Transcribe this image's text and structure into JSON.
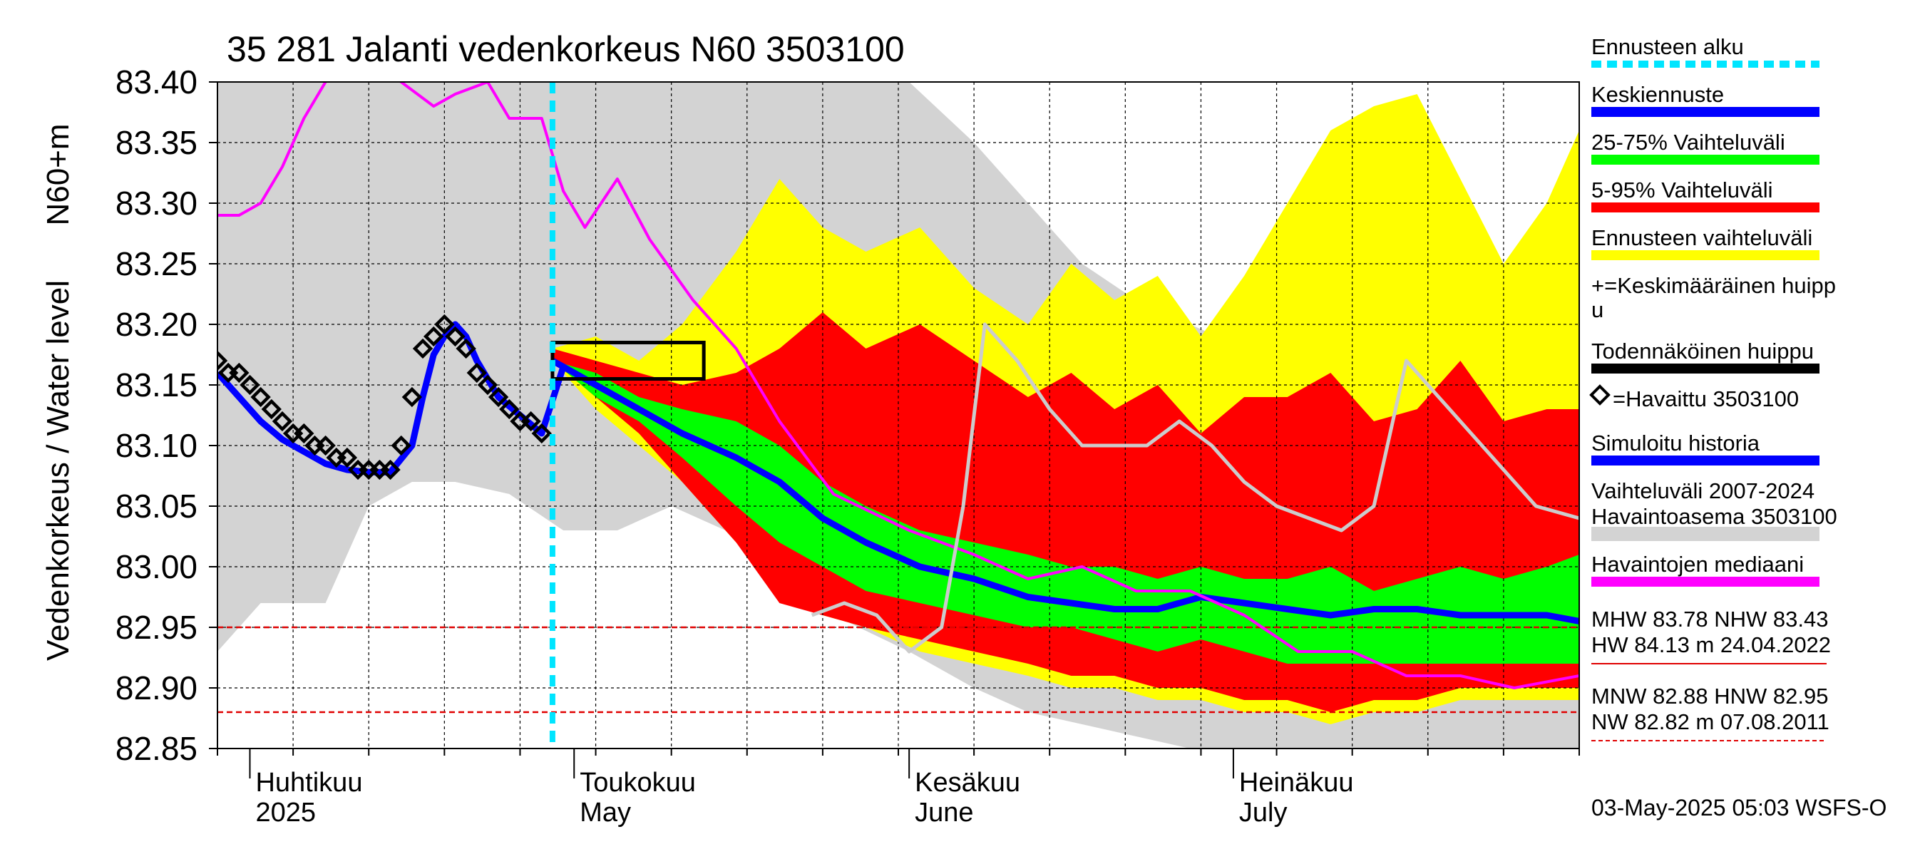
{
  "chart_data": {
    "type": "area",
    "title": "35 281 Jalanti vedenkorkeus N60 3503100",
    "ylabel": "Vedenkorkeus / Water level",
    "ylabel_unit": "N60+m",
    "ylim": [
      82.85,
      83.4
    ],
    "yticks": [
      "83.40",
      "83.35",
      "83.30",
      "83.25",
      "83.20",
      "83.15",
      "83.10",
      "83.05",
      "83.00",
      "82.95",
      "82.90",
      "82.85"
    ],
    "xlim": [
      "2025-03-29",
      "2025-08-02"
    ],
    "grid": true,
    "month_labels": [
      {
        "line1": "Huhtikuu",
        "line2": "2025",
        "date": "2025-04-01"
      },
      {
        "line1": "Toukokuu",
        "line2": "May",
        "date": "2025-05-01"
      },
      {
        "line1": "Kesäkuu",
        "line2": "June",
        "date": "2025-06-01"
      },
      {
        "line1": "Heinäkuu",
        "line2": "July",
        "date": "2025-07-01"
      }
    ],
    "forecast_start": "2025-04-29",
    "probable_peak_box": {
      "x_start": "2025-04-29",
      "x_end": "2025-05-13",
      "y_low": 83.155,
      "y_high": 83.185
    },
    "reference_lines": [
      {
        "name": "HNW",
        "value": 82.95,
        "color": "#e00000"
      },
      {
        "name": "MNW",
        "value": 82.88,
        "color": "#e00000"
      }
    ],
    "series": [
      {
        "name": "Vaihteluväli 2007-2024 Havaintoasema 3503100",
        "kind": "band",
        "color": "#d3d3d3",
        "x": [
          "2025-03-29",
          "2025-04-02",
          "2025-04-08",
          "2025-04-12",
          "2025-04-16",
          "2025-04-20",
          "2025-04-25",
          "2025-04-30",
          "2025-05-05",
          "2025-05-10",
          "2025-05-15",
          "2025-05-20",
          "2025-05-25",
          "2025-06-01",
          "2025-06-07",
          "2025-06-12",
          "2025-06-17",
          "2025-06-22",
          "2025-06-27",
          "2025-07-02",
          "2025-07-07",
          "2025-07-12",
          "2025-07-17",
          "2025-07-22",
          "2025-07-27",
          "2025-08-02"
        ],
        "low": [
          82.93,
          82.97,
          82.97,
          83.05,
          83.07,
          83.07,
          83.06,
          83.03,
          83.03,
          83.05,
          83.03,
          83.0,
          82.96,
          82.93,
          82.9,
          82.88,
          82.87,
          82.86,
          82.85,
          82.85,
          82.85,
          82.85,
          82.85,
          82.85,
          82.85,
          82.85
        ],
        "high": [
          83.4,
          83.4,
          83.4,
          83.4,
          83.4,
          83.4,
          83.4,
          83.4,
          83.4,
          83.4,
          83.4,
          83.4,
          83.4,
          83.4,
          83.35,
          83.3,
          83.25,
          83.22,
          83.2,
          83.18,
          83.17,
          83.16,
          83.18,
          83.15,
          83.13,
          83.12
        ]
      },
      {
        "name": "Ennusteen vaihteluväli",
        "kind": "band",
        "color": "#ffff00",
        "x": [
          "2025-04-29",
          "2025-05-03",
          "2025-05-07",
          "2025-05-11",
          "2025-05-16",
          "2025-05-20",
          "2025-05-24",
          "2025-05-28",
          "2025-06-02",
          "2025-06-07",
          "2025-06-12",
          "2025-06-16",
          "2025-06-20",
          "2025-06-24",
          "2025-06-28",
          "2025-07-02",
          "2025-07-06",
          "2025-07-10",
          "2025-07-14",
          "2025-07-18",
          "2025-07-22",
          "2025-07-26",
          "2025-07-30",
          "2025-08-02"
        ],
        "low": [
          83.17,
          83.13,
          83.1,
          83.07,
          83.02,
          82.98,
          82.96,
          82.95,
          82.93,
          82.92,
          82.91,
          82.9,
          82.9,
          82.89,
          82.89,
          82.88,
          82.88,
          82.87,
          82.88,
          82.88,
          82.89,
          82.89,
          82.89,
          82.89
        ],
        "high": [
          83.18,
          83.19,
          83.17,
          83.2,
          83.26,
          83.32,
          83.28,
          83.26,
          83.28,
          83.23,
          83.2,
          83.25,
          83.22,
          83.24,
          83.19,
          83.24,
          83.3,
          83.36,
          83.38,
          83.39,
          83.32,
          83.25,
          83.3,
          83.36
        ]
      },
      {
        "name": "5-95% Vaihteluväli",
        "kind": "band",
        "color": "#ff0000",
        "x": [
          "2025-04-29",
          "2025-05-03",
          "2025-05-07",
          "2025-05-11",
          "2025-05-16",
          "2025-05-20",
          "2025-05-24",
          "2025-05-28",
          "2025-06-02",
          "2025-06-07",
          "2025-06-12",
          "2025-06-16",
          "2025-06-20",
          "2025-06-24",
          "2025-06-28",
          "2025-07-02",
          "2025-07-06",
          "2025-07-10",
          "2025-07-14",
          "2025-07-18",
          "2025-07-22",
          "2025-07-26",
          "2025-07-30",
          "2025-08-02"
        ],
        "low": [
          83.17,
          83.14,
          83.11,
          83.07,
          83.02,
          82.97,
          82.96,
          82.95,
          82.94,
          82.93,
          82.92,
          82.91,
          82.91,
          82.9,
          82.9,
          82.89,
          82.89,
          82.88,
          82.89,
          82.89,
          82.9,
          82.9,
          82.9,
          82.9
        ],
        "high": [
          83.18,
          83.17,
          83.16,
          83.15,
          83.16,
          83.18,
          83.21,
          83.18,
          83.2,
          83.17,
          83.14,
          83.16,
          83.13,
          83.15,
          83.11,
          83.14,
          83.14,
          83.16,
          83.12,
          83.13,
          83.17,
          83.12,
          83.13,
          83.13
        ]
      },
      {
        "name": "25-75% Vaihteluväli",
        "kind": "band",
        "color": "#00ff00",
        "x": [
          "2025-04-29",
          "2025-05-03",
          "2025-05-07",
          "2025-05-11",
          "2025-05-16",
          "2025-05-20",
          "2025-05-24",
          "2025-05-28",
          "2025-06-02",
          "2025-06-07",
          "2025-06-12",
          "2025-06-16",
          "2025-06-20",
          "2025-06-24",
          "2025-06-28",
          "2025-07-02",
          "2025-07-06",
          "2025-07-10",
          "2025-07-14",
          "2025-07-18",
          "2025-07-22",
          "2025-07-26",
          "2025-07-30",
          "2025-08-02"
        ],
        "low": [
          83.17,
          83.14,
          83.12,
          83.09,
          83.05,
          83.02,
          83.0,
          82.98,
          82.97,
          82.96,
          82.95,
          82.95,
          82.94,
          82.93,
          82.94,
          82.93,
          82.92,
          82.92,
          82.92,
          82.92,
          82.92,
          82.92,
          82.92,
          82.92
        ],
        "high": [
          83.17,
          83.16,
          83.14,
          83.13,
          83.12,
          83.1,
          83.07,
          83.05,
          83.03,
          83.02,
          83.01,
          83.0,
          83.0,
          82.99,
          83.0,
          82.99,
          82.99,
          83.0,
          82.98,
          82.99,
          83.0,
          82.99,
          83.0,
          83.01
        ]
      },
      {
        "name": "Keskiennuste",
        "kind": "line",
        "color": "#0000ff",
        "x": [
          "2025-04-29",
          "2025-05-03",
          "2025-05-07",
          "2025-05-11",
          "2025-05-16",
          "2025-05-20",
          "2025-05-24",
          "2025-05-28",
          "2025-06-02",
          "2025-06-07",
          "2025-06-12",
          "2025-06-16",
          "2025-06-20",
          "2025-06-24",
          "2025-06-28",
          "2025-07-02",
          "2025-07-06",
          "2025-07-10",
          "2025-07-14",
          "2025-07-18",
          "2025-07-22",
          "2025-07-26",
          "2025-07-30",
          "2025-08-02"
        ],
        "y": [
          83.17,
          83.15,
          83.13,
          83.11,
          83.09,
          83.07,
          83.04,
          83.02,
          83.0,
          82.99,
          82.975,
          82.97,
          82.965,
          82.965,
          82.975,
          82.97,
          82.965,
          82.96,
          82.965,
          82.965,
          82.96,
          82.96,
          82.96,
          82.955
        ]
      },
      {
        "name": "Havaintojen mediaani",
        "kind": "line",
        "color": "#ff00ff",
        "x": [
          "2025-03-29",
          "2025-03-31",
          "2025-04-02",
          "2025-04-04",
          "2025-04-06",
          "2025-04-08",
          "2025-04-10",
          "2025-04-12",
          "2025-04-15",
          "2025-04-18",
          "2025-04-20",
          "2025-04-23",
          "2025-04-25",
          "2025-04-28",
          "2025-04-30",
          "2025-05-02",
          "2025-05-05",
          "2025-05-08",
          "2025-05-12",
          "2025-05-16",
          "2025-05-20",
          "2025-05-25",
          "2025-06-01",
          "2025-06-07",
          "2025-06-12",
          "2025-06-17",
          "2025-06-22",
          "2025-06-27",
          "2025-07-02",
          "2025-07-07",
          "2025-07-12",
          "2025-07-17",
          "2025-07-22",
          "2025-07-27",
          "2025-08-02"
        ],
        "y": [
          83.29,
          83.29,
          83.3,
          83.33,
          83.37,
          83.4,
          83.42,
          83.42,
          83.4,
          83.38,
          83.39,
          83.4,
          83.37,
          83.37,
          83.31,
          83.28,
          83.32,
          83.27,
          83.22,
          83.18,
          83.12,
          83.06,
          83.03,
          83.01,
          82.99,
          83.0,
          82.98,
          82.98,
          82.96,
          82.93,
          82.93,
          82.91,
          82.91,
          82.9,
          82.91
        ]
      },
      {
        "name": "Simuloitu historia",
        "kind": "line",
        "color": "#0000ff",
        "x": [
          "2025-03-29",
          "2025-03-31",
          "2025-04-02",
          "2025-04-04",
          "2025-04-06",
          "2025-04-08",
          "2025-04-10",
          "2025-04-12",
          "2025-04-14",
          "2025-04-16",
          "2025-04-17",
          "2025-04-18",
          "2025-04-19",
          "2025-04-20",
          "2025-04-21",
          "2025-04-22",
          "2025-04-24",
          "2025-04-26",
          "2025-04-28",
          "2025-04-30"
        ],
        "y": [
          83.16,
          83.14,
          83.12,
          83.105,
          83.095,
          83.085,
          83.08,
          83.078,
          83.078,
          83.1,
          83.14,
          83.175,
          83.19,
          83.2,
          83.19,
          83.17,
          83.14,
          83.125,
          83.11,
          83.165
        ]
      },
      {
        "name": "Havaittu 3503100",
        "kind": "markers",
        "color": "#000000",
        "x": [
          "2025-03-29",
          "2025-03-30",
          "2025-03-31",
          "2025-04-01",
          "2025-04-02",
          "2025-04-03",
          "2025-04-04",
          "2025-04-05",
          "2025-04-06",
          "2025-04-07",
          "2025-04-08",
          "2025-04-09",
          "2025-04-10",
          "2025-04-11",
          "2025-04-12",
          "2025-04-13",
          "2025-04-14",
          "2025-04-15",
          "2025-04-16",
          "2025-04-17",
          "2025-04-18",
          "2025-04-19",
          "2025-04-20",
          "2025-04-21",
          "2025-04-22",
          "2025-04-23",
          "2025-04-24",
          "2025-04-25",
          "2025-04-26",
          "2025-04-27",
          "2025-04-28"
        ],
        "y": [
          83.17,
          83.16,
          83.16,
          83.15,
          83.14,
          83.13,
          83.12,
          83.11,
          83.11,
          83.1,
          83.1,
          83.09,
          83.09,
          83.08,
          83.08,
          83.08,
          83.08,
          83.1,
          83.14,
          83.18,
          83.19,
          83.2,
          83.19,
          83.18,
          83.16,
          83.15,
          83.14,
          83.13,
          83.12,
          83.12,
          83.11
        ]
      },
      {
        "name": "Simuloitu historia (hist)",
        "kind": "line",
        "color": "#cccccc",
        "x": [
          "2025-05-23",
          "2025-05-26",
          "2025-05-29",
          "2025-06-01",
          "2025-06-04",
          "2025-06-06",
          "2025-06-08",
          "2025-06-11",
          "2025-06-14",
          "2025-06-17",
          "2025-06-20",
          "2025-06-23",
          "2025-06-26",
          "2025-06-29",
          "2025-07-02",
          "2025-07-05",
          "2025-07-08",
          "2025-07-11",
          "2025-07-14",
          "2025-07-17",
          "2025-07-20",
          "2025-07-23",
          "2025-07-26",
          "2025-07-29",
          "2025-08-02"
        ],
        "y": [
          82.96,
          82.97,
          82.96,
          82.93,
          82.95,
          83.05,
          83.2,
          83.17,
          83.13,
          83.1,
          83.1,
          83.1,
          83.12,
          83.1,
          83.07,
          83.05,
          83.04,
          83.03,
          83.05,
          83.17,
          83.14,
          83.11,
          83.08,
          83.05,
          83.04
        ]
      }
    ],
    "legend_position": "right",
    "legend": [
      {
        "label": "Ennusteen alku",
        "swatch": "dash",
        "color": "#00e5ff"
      },
      {
        "label": "Keskiennuste",
        "swatch": "bar",
        "color": "#0000ff"
      },
      {
        "label": "25-75% Vaihteluväli",
        "swatch": "bar",
        "color": "#00ff00"
      },
      {
        "label": "5-95% Vaihteluväli",
        "swatch": "bar",
        "color": "#ff0000"
      },
      {
        "label": "Ennusteen vaihteluväli",
        "swatch": "bar",
        "color": "#ffff00"
      },
      {
        "label": "+=Keskimääräinen huipp",
        "label2": "u",
        "swatch": "none",
        "color": "#000000"
      },
      {
        "label": "Todennäköinen huippu",
        "swatch": "bar",
        "color": "#000000"
      },
      {
        "label": "=Havaittu 3503100",
        "swatch": "diamond",
        "color": "#000000"
      },
      {
        "label": "Simuloitu historia",
        "swatch": "bar",
        "color": "#0000ff"
      },
      {
        "label": "Vaihteluväli 2007-2024",
        "label2": " Havaintoasema 3503100",
        "swatch": "bar",
        "color": "#d3d3d3"
      },
      {
        "label": "Havaintojen mediaani",
        "swatch": "bar",
        "color": "#ff00ff"
      }
    ],
    "stats": [
      {
        "text": "MHW  83.78 NHW  83.43"
      },
      {
        "text": "HW  84.13 m 24.04.2022"
      },
      {
        "text": "MNW  82.88 HNW  82.95"
      },
      {
        "text": "NW  82.82 m 07.08.2011"
      }
    ],
    "footer": "03-May-2025 05:03 WSFS-O"
  }
}
